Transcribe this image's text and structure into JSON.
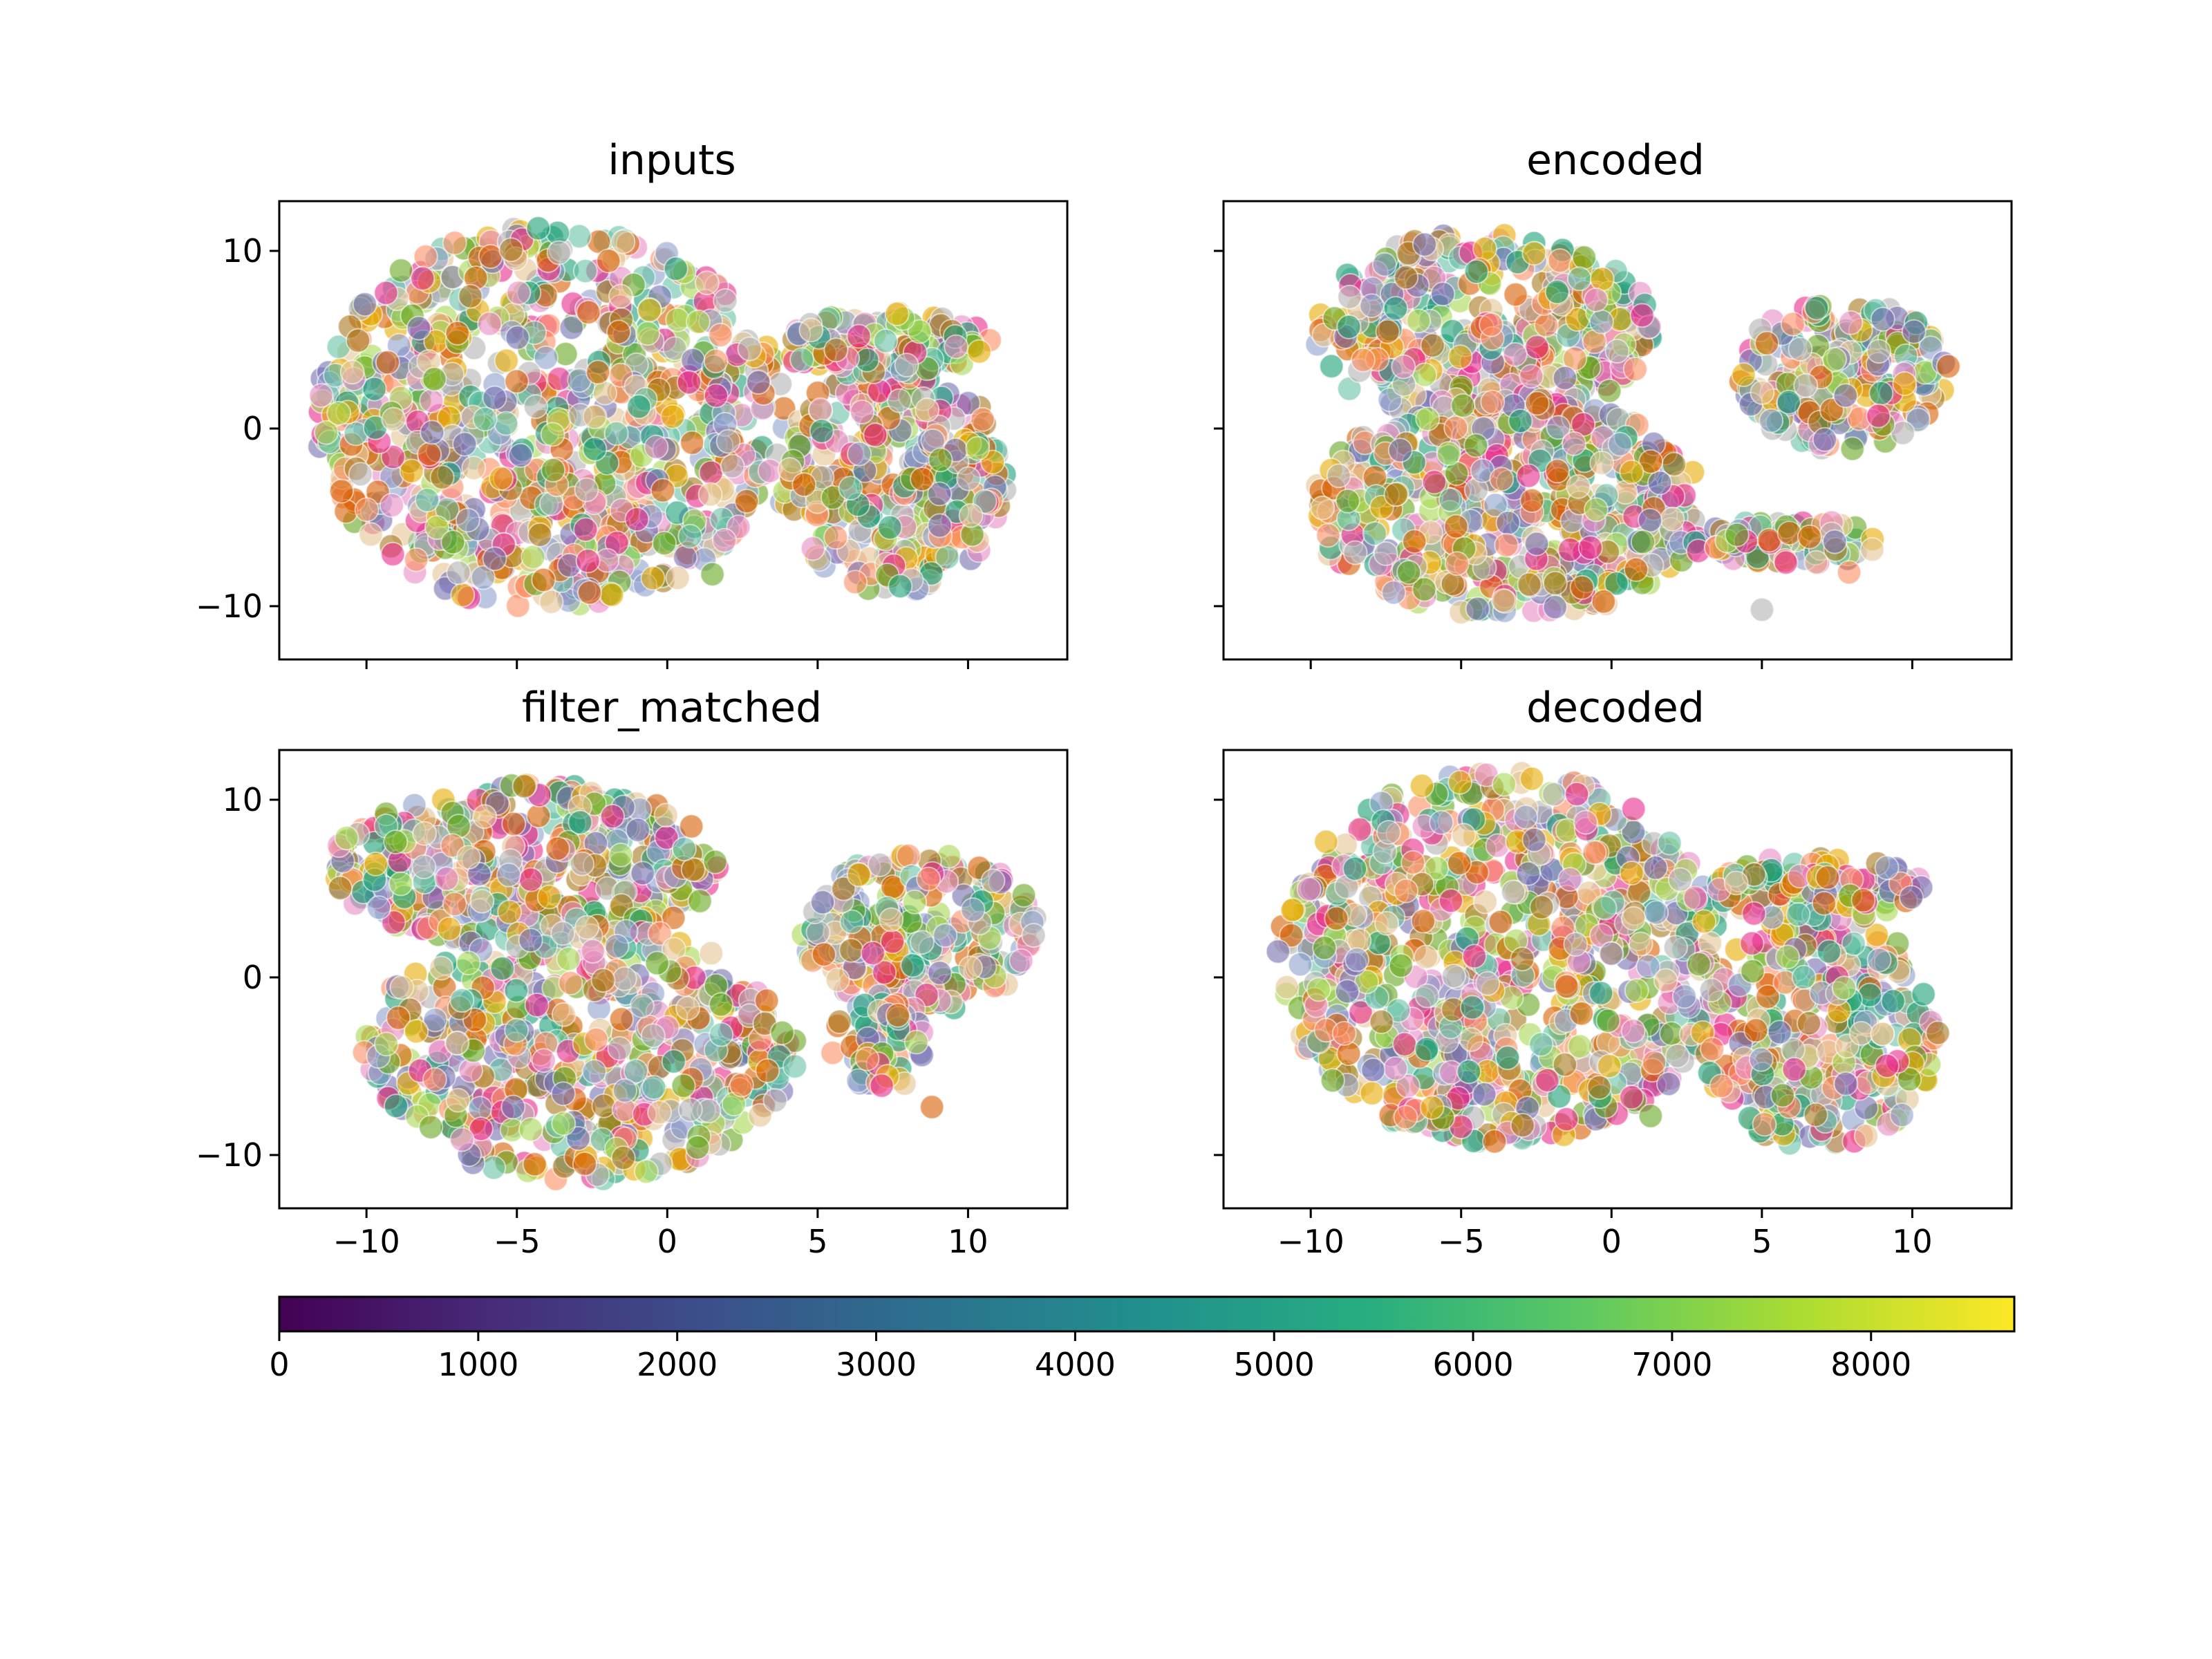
{
  "chart_data": {
    "type": "scatter",
    "layout": "2x2 grid with shared axes and one horizontal colorbar",
    "shared_x": true,
    "shared_y": true,
    "marker_alpha": 0.6,
    "marker_edge": "white",
    "panels": [
      {
        "title": "inputs",
        "xlim": [
          -12.9,
          13.3
        ],
        "ylim": [
          -13.0,
          12.8
        ],
        "clusters": [
          {
            "center": [
              -3.9,
              0.6
            ],
            "radii": [
              7.8,
              10.8
            ],
            "count": 900
          },
          {
            "center": [
              7.5,
              -2.8
            ],
            "radii": [
              3.8,
              6.4
            ],
            "count": 340
          },
          {
            "center": [
              7.2,
              4.8
            ],
            "radii": [
              3.6,
              1.8
            ],
            "count": 120
          }
        ],
        "outliers": [
          [
            1.5,
            -8.2
          ],
          [
            1.9,
            -6.3
          ]
        ]
      },
      {
        "title": "encoded",
        "xlim": [
          -12.9,
          13.3
        ],
        "ylim": [
          -13.0,
          12.8
        ],
        "clusters": [
          {
            "center": [
              -4.3,
              5.6
            ],
            "radii": [
              5.7,
              5.4
            ],
            "count": 420
          },
          {
            "center": [
              -3.4,
              -4.5
            ],
            "radii": [
              6.6,
              6.2
            ],
            "count": 560
          },
          {
            "center": [
              7.7,
              3.0
            ],
            "radii": [
              3.5,
              4.2
            ],
            "count": 230
          },
          {
            "center": [
              5.8,
              -6.4
            ],
            "radii": [
              3.2,
              1.3
            ],
            "count": 90
          }
        ],
        "outliers": [
          [
            11.2,
            3.5
          ],
          [
            5.0,
            -10.2
          ],
          [
            7.9,
            -8.1
          ]
        ]
      },
      {
        "title": "filter_matched",
        "xlim": [
          -12.9,
          13.3
        ],
        "ylim": [
          -13.0,
          12.8
        ],
        "clusters": [
          {
            "center": [
              -4.7,
              6.3
            ],
            "radii": [
              6.5,
              4.6
            ],
            "count": 420
          },
          {
            "center": [
              -2.9,
              -4.2
            ],
            "radii": [
              7.2,
              7.2
            ],
            "count": 560
          },
          {
            "center": [
              8.4,
              2.6
            ],
            "radii": [
              3.9,
              4.6
            ],
            "count": 260
          },
          {
            "center": [
              7.0,
              -3.9
            ],
            "radii": [
              1.6,
              2.6
            ],
            "count": 60
          }
        ],
        "outliers": [
          [
            8.8,
            -7.3
          ]
        ]
      },
      {
        "title": "decoded",
        "xlim": [
          -12.9,
          13.3
        ],
        "ylim": [
          -13.0,
          12.8
        ],
        "clusters": [
          {
            "center": [
              -3.7,
              1.1
            ],
            "radii": [
              7.4,
              10.5
            ],
            "count": 900
          },
          {
            "center": [
              6.9,
              -3.0
            ],
            "radii": [
              4.0,
              6.6
            ],
            "count": 340
          },
          {
            "center": [
              6.8,
              5.0
            ],
            "radii": [
              3.6,
              1.8
            ],
            "count": 120
          }
        ],
        "outliers": [
          [
            1.3,
            -7.8
          ],
          [
            1.9,
            -6.0
          ]
        ]
      }
    ],
    "x_ticks": [
      -10,
      -5,
      0,
      5,
      10
    ],
    "x_tick_labels": [
      "−10",
      "−5",
      "0",
      "5",
      "10"
    ],
    "y_ticks": [
      -10,
      0,
      10
    ],
    "y_tick_labels": [
      "−10",
      "0",
      "10"
    ],
    "colorbar": {
      "colormap": "viridis",
      "range": [
        0,
        8720
      ],
      "ticks": [
        0,
        1000,
        2000,
        3000,
        4000,
        5000,
        6000,
        7000,
        8000
      ],
      "tick_labels": [
        "0",
        "1000",
        "2000",
        "3000",
        "4000",
        "5000",
        "6000",
        "7000",
        "8000"
      ],
      "stops": [
        "#440154",
        "#472c7a",
        "#3b518b",
        "#2c718e",
        "#21908d",
        "#27ad81",
        "#5cc863",
        "#aadc32",
        "#fde725"
      ]
    },
    "marker_palette": [
      "#66c2a5",
      "#fc8d62",
      "#8da0cb",
      "#e78ac3",
      "#a6d854",
      "#e5c494",
      "#1b9e77",
      "#d95f02",
      "#7570b3",
      "#e7298a",
      "#66a61e",
      "#e6ab02",
      "#a6761d",
      "#b3b3b3"
    ]
  }
}
